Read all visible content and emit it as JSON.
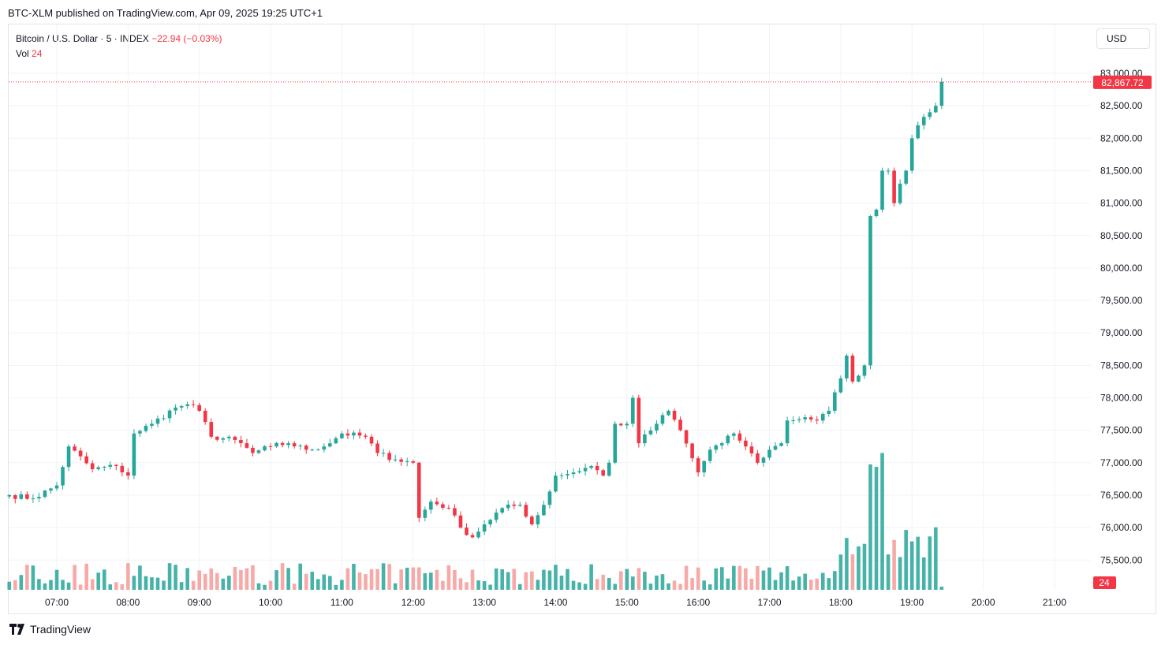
{
  "header": {
    "title": "BTC-XLM published on TradingView.com, Apr 09, 2025 19:25 UTC+1"
  },
  "legend": {
    "symbol": "Bitcoin / U.S. Dollar · 5 · INDEX",
    "change": "−22.94 (−0.03%)",
    "vol_label": "Vol",
    "vol_value": "24"
  },
  "currency_button": "USD",
  "footer": {
    "brand": "TradingView",
    "logo_icon": "tradingview-logo-icon"
  },
  "colors": {
    "up": "#26a69a",
    "down": "#f23645",
    "vol_up": "#26a69a",
    "vol_down": "#f7a9a7",
    "grid": "#f0f3fa"
  },
  "chart_data": {
    "type": "candlestick",
    "interval": "5",
    "x_ticks": [
      "07:00",
      "08:00",
      "09:00",
      "10:00",
      "11:00",
      "12:00",
      "13:00",
      "14:00",
      "15:00",
      "16:00",
      "17:00",
      "18:00",
      "19:00",
      "20:00",
      "21:00"
    ],
    "y_ticks": [
      "83,000.00",
      "82,500.00",
      "82,000.00",
      "81,500.00",
      "81,000.00",
      "80,500.00",
      "80,000.00",
      "79,500.00",
      "79,000.00",
      "78,500.00",
      "78,000.00",
      "77,500.00",
      "77,000.00",
      "76,500.00",
      "76,000.00",
      "75,500.00"
    ],
    "ylim": [
      75200,
      83150
    ],
    "last_price": 82867.72,
    "last_price_label": "82,867.72",
    "last_volume_label": "24",
    "ohlc_anchor_series": [
      {
        "t": "06:20",
        "c": 76500
      },
      {
        "t": "06:40",
        "c": 76450
      },
      {
        "t": "07:00",
        "c": 76650
      },
      {
        "t": "07:10",
        "c": 77250
      },
      {
        "t": "07:30",
        "c": 76900
      },
      {
        "t": "07:50",
        "c": 76950
      },
      {
        "t": "08:00",
        "c": 76800
      },
      {
        "t": "08:05",
        "c": 77450
      },
      {
        "t": "08:20",
        "c": 77600
      },
      {
        "t": "08:40",
        "c": 77850
      },
      {
        "t": "08:50",
        "c": 77900
      },
      {
        "t": "09:00",
        "c": 77800
      },
      {
        "t": "09:10",
        "c": 77400
      },
      {
        "t": "09:30",
        "c": 77350
      },
      {
        "t": "09:45",
        "c": 77150
      },
      {
        "t": "10:00",
        "c": 77250
      },
      {
        "t": "10:15",
        "c": 77300
      },
      {
        "t": "10:30",
        "c": 77200
      },
      {
        "t": "10:45",
        "c": 77250
      },
      {
        "t": "11:00",
        "c": 77450
      },
      {
        "t": "11:20",
        "c": 77400
      },
      {
        "t": "11:30",
        "c": 77150
      },
      {
        "t": "11:45",
        "c": 77050
      },
      {
        "t": "12:00",
        "c": 77000
      },
      {
        "t": "12:05",
        "c": 76150
      },
      {
        "t": "12:15",
        "c": 76400
      },
      {
        "t": "12:30",
        "c": 76300
      },
      {
        "t": "12:40",
        "c": 76000
      },
      {
        "t": "12:50",
        "c": 75850
      },
      {
        "t": "13:00",
        "c": 76050
      },
      {
        "t": "13:15",
        "c": 76300
      },
      {
        "t": "13:30",
        "c": 76350
      },
      {
        "t": "13:40",
        "c": 76050
      },
      {
        "t": "13:50",
        "c": 76350
      },
      {
        "t": "14:00",
        "c": 76800
      },
      {
        "t": "14:15",
        "c": 76850
      },
      {
        "t": "14:30",
        "c": 76950
      },
      {
        "t": "14:40",
        "c": 76800
      },
      {
        "t": "14:45",
        "c": 77000
      },
      {
        "t": "14:50",
        "c": 77600
      },
      {
        "t": "15:00",
        "c": 77600
      },
      {
        "t": "15:05",
        "c": 78000
      },
      {
        "t": "15:10",
        "c": 77300
      },
      {
        "t": "15:25",
        "c": 77600
      },
      {
        "t": "15:35",
        "c": 77800
      },
      {
        "t": "15:45",
        "c": 77500
      },
      {
        "t": "16:00",
        "c": 76850
      },
      {
        "t": "16:10",
        "c": 77200
      },
      {
        "t": "16:20",
        "c": 77300
      },
      {
        "t": "16:30",
        "c": 77450
      },
      {
        "t": "16:40",
        "c": 77250
      },
      {
        "t": "16:50",
        "c": 77000
      },
      {
        "t": "17:00",
        "c": 77200
      },
      {
        "t": "17:10",
        "c": 77300
      },
      {
        "t": "17:15",
        "c": 77650
      },
      {
        "t": "17:30",
        "c": 77700
      },
      {
        "t": "17:40",
        "c": 77650
      },
      {
        "t": "17:50",
        "c": 77800
      },
      {
        "t": "18:00",
        "c": 78300
      },
      {
        "t": "18:05",
        "c": 78650
      },
      {
        "t": "18:10",
        "c": 78250
      },
      {
        "t": "18:20",
        "c": 78500
      },
      {
        "t": "18:25",
        "c": 80800
      },
      {
        "t": "18:30",
        "c": 80900
      },
      {
        "t": "18:35",
        "c": 81500
      },
      {
        "t": "18:40",
        "c": 81500
      },
      {
        "t": "18:45",
        "c": 81000
      },
      {
        "t": "18:50",
        "c": 81300
      },
      {
        "t": "18:55",
        "c": 81500
      },
      {
        "t": "19:00",
        "c": 82000
      },
      {
        "t": "19:05",
        "c": 82200
      },
      {
        "t": "19:15",
        "c": 82400
      },
      {
        "t": "19:20",
        "c": 82500
      },
      {
        "t": "19:25",
        "c": 82867.72
      }
    ],
    "volume_note": "Volume bars spike near 18:25–18:35"
  }
}
